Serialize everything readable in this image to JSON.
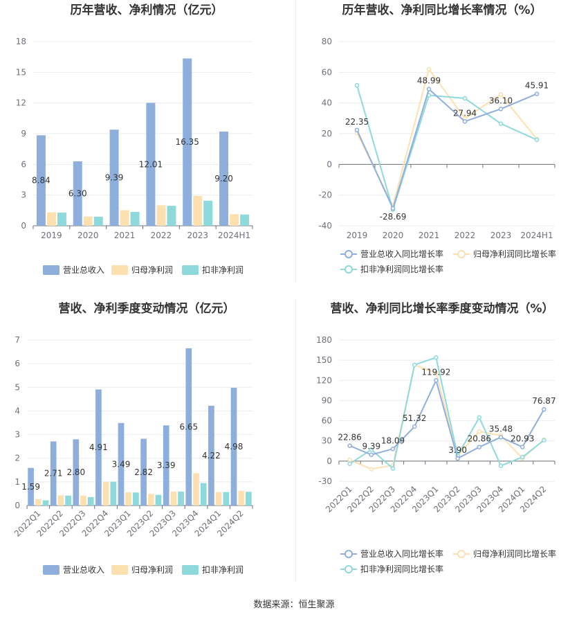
{
  "footer": "数据来源：恒生聚源",
  "charts": [
    {
      "type": "bar",
      "title": "历年营收、净利情况（亿元）",
      "categories": [
        "2019",
        "2020",
        "2021",
        "2022",
        "2023",
        "2024H1"
      ],
      "yticks": [
        "0",
        "3",
        "6",
        "9",
        "12",
        "15",
        "18"
      ],
      "ylim": [
        0,
        18
      ],
      "colors": [
        "#8eaedc",
        "#fde0b0",
        "#8ed9dc"
      ],
      "series": [
        {
          "name": "营业总收入",
          "values": [
            8.84,
            6.3,
            9.39,
            12.01,
            16.35,
            9.2
          ],
          "labels": [
            "8.84",
            "6.30",
            "9.39",
            "12.01",
            "16.35",
            "9.20"
          ]
        },
        {
          "name": "归母净利润",
          "values": [
            1.3,
            0.9,
            1.52,
            2.0,
            2.91,
            1.13
          ]
        },
        {
          "name": "扣非净利润",
          "values": [
            1.28,
            0.88,
            1.35,
            1.95,
            2.45,
            1.1
          ]
        }
      ],
      "legend_position": "bottom"
    },
    {
      "type": "line",
      "title": "历年营收、净利同比增长率情况（%）",
      "categories": [
        "2019",
        "2020",
        "2021",
        "2022",
        "2023",
        "2024H1"
      ],
      "yticks": [
        "-40",
        "-20",
        "0",
        "20",
        "40",
        "60",
        "80"
      ],
      "ylim": [
        -40,
        80
      ],
      "colors": [
        "#8eaedc",
        "#fde0b0",
        "#8ed9dc"
      ],
      "series": [
        {
          "name": "营业总收入同比增长率",
          "values": [
            22.35,
            -28.69,
            48.99,
            27.94,
            36.1,
            45.91
          ],
          "labels": [
            "22.35",
            "-28.69",
            "48.99",
            "27.94",
            "36.10",
            "45.91"
          ]
        },
        {
          "name": "归母净利润同比增长率",
          "values": [
            20.5,
            -27.0,
            62.0,
            30.0,
            45.5,
            16.5
          ]
        },
        {
          "name": "扣非净利润同比增长率",
          "values": [
            51.5,
            -29.5,
            45.0,
            43.0,
            26.5,
            16.0
          ]
        }
      ],
      "legend_position": "bottom"
    },
    {
      "type": "bar",
      "title": "营收、净利季度变动情况（亿元）",
      "categories": [
        "2022Q1",
        "2022Q2",
        "2022Q3",
        "2022Q4",
        "2023Q1",
        "2023Q2",
        "2023Q3",
        "2023Q4",
        "2024Q1",
        "2024Q2"
      ],
      "yticks": [
        "0",
        "1",
        "2",
        "3",
        "4",
        "5",
        "6",
        "7"
      ],
      "ylim": [
        0,
        7
      ],
      "colors": [
        "#8eaedc",
        "#fde0b0",
        "#8ed9dc"
      ],
      "series": [
        {
          "name": "营业总收入",
          "values": [
            1.59,
            2.71,
            2.8,
            4.91,
            3.49,
            2.82,
            3.39,
            6.65,
            4.22,
            4.98
          ],
          "labels": [
            "1.59",
            "2.71",
            "2.80",
            "4.91",
            "3.49",
            "2.82",
            "3.39",
            "6.65",
            "4.22",
            "4.98"
          ]
        },
        {
          "name": "归母净利润",
          "values": [
            0.27,
            0.43,
            0.42,
            0.99,
            0.56,
            0.49,
            0.59,
            1.37,
            0.57,
            0.62
          ]
        },
        {
          "name": "扣非净利润",
          "values": [
            0.22,
            0.42,
            0.36,
            1.01,
            0.55,
            0.45,
            0.59,
            0.95,
            0.57,
            0.58
          ]
        }
      ],
      "legend_position": "bottom"
    },
    {
      "type": "line",
      "title": "营收、净利同比增长率季度变动情况（%）",
      "categories": [
        "2022Q1",
        "2022Q2",
        "2022Q3",
        "2022Q4",
        "2023Q1",
        "2023Q2",
        "2023Q3",
        "2023Q4",
        "2024Q1",
        "2024Q2"
      ],
      "yticks": [
        "-30",
        "0",
        "30",
        "60",
        "90",
        "120",
        "150",
        "180"
      ],
      "ylim": [
        -30,
        180
      ],
      "colors": [
        "#8eaedc",
        "#fde0b0",
        "#8ed9dc"
      ],
      "series": [
        {
          "name": "营业总收入同比增长率",
          "values": [
            22.86,
            9.39,
            18.09,
            51.32,
            119.92,
            3.9,
            20.86,
            35.48,
            20.93,
            76.87
          ],
          "labels": [
            "22.86",
            "9.39",
            "18.09",
            "51.32",
            "119.92",
            "3.90",
            "20.86",
            "35.48",
            "20.93",
            "76.87"
          ]
        },
        {
          "name": "归母净利润同比增长率",
          "values": [
            2.0,
            -12.0,
            -6.0,
            143.0,
            131.0,
            8.0,
            44.0,
            38.0,
            4.0,
            32.0
          ]
        },
        {
          "name": "扣非净利润同比增长率",
          "values": [
            -4.0,
            17.0,
            -11.0,
            143.0,
            154.0,
            8.0,
            65.0,
            -7.0,
            6.0,
            31.0
          ]
        }
      ],
      "legend_position": "bottom"
    }
  ]
}
